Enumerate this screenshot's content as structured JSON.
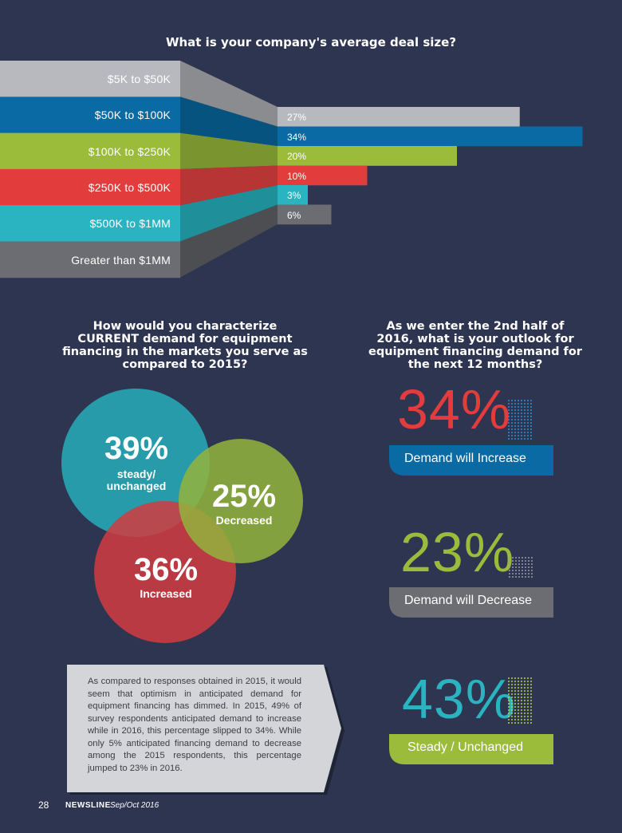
{
  "deal_size": {
    "title": "What is your company's average deal size?"
  },
  "chart_data": [
    {
      "type": "bar",
      "title": "What is your company's average deal size?",
      "categories": [
        "$5K to $50K",
        "$50K to $100K",
        "$100K to $250K",
        "$250K to $500K",
        "$500K to $1MM",
        "Greater than $1MM"
      ],
      "values": [
        27,
        34,
        20,
        10,
        3,
        6
      ],
      "value_labels": [
        "27%",
        "34%",
        "20%",
        "10%",
        "3%",
        "6%"
      ],
      "colors": [
        "#b8b9be",
        "#0a6aa4",
        "#9bbb3a",
        "#e23c3c",
        "#2ab4c2",
        "#6b6d72"
      ],
      "dark_colors": [
        "#8b8c90",
        "#07537f",
        "#7a9530",
        "#b83535",
        "#1f8f9a",
        "#4d4e52"
      ]
    },
    {
      "type": "venn",
      "title": "How would you characterize CURRENT demand for equipment financing in the markets you serve as compared to 2015?",
      "sets": [
        {
          "value": "39%",
          "label": "steady/ unchanged",
          "color": "#28a4b2"
        },
        {
          "value": "25%",
          "label": "Decreased",
          "color": "#93b43d"
        },
        {
          "value": "36%",
          "label": "Increased",
          "color": "#d13b3f"
        }
      ]
    },
    {
      "type": "table",
      "title": "As we enter the 2nd half of 2016, what is your outlook for equipment financing demand for the next 12 months?",
      "rows": [
        {
          "value": "34%",
          "label": "Demand will Increase",
          "num_color": "#e23c3c",
          "pill_color": "#0a6aa4",
          "dot_color": "#2a8fd0"
        },
        {
          "value": "23%",
          "label": "Demand will Decrease",
          "num_color": "#9bbb3a",
          "pill_color": "#6b6d72",
          "dot_color": "#9a9ba0"
        },
        {
          "value": "43%",
          "label": "Steady / Unchanged",
          "num_color": "#2ab4c2",
          "pill_color": "#9bbb3a",
          "dot_color": "#b6d33e"
        }
      ]
    }
  ],
  "current_demand": {
    "title_lines": [
      "How would you characterize",
      "CURRENT demand for equipment",
      "financing in the markets you serve as",
      "compared to 2015?"
    ]
  },
  "outlook": {
    "title_lines": [
      "As we enter the 2nd half of",
      "2016, what is your outlook for",
      "equipment financing demand for",
      "the next 12 months?"
    ]
  },
  "note": {
    "text": "As compared to responses obtained in 2015, it would seem that optimism in anticipated demand for equipment financing has dimmed. In 2015, 49% of survey respondents anticipated demand to increase while in 2016, this percentage slipped to 34%. While only 5% anticipated financing demand to decrease among the 2015 respondents, this percentage jumped to 23% in 2016."
  },
  "footer": {
    "page": "28",
    "publication": "NEWSLINE",
    "issue": "Sep/Oct 2016"
  }
}
